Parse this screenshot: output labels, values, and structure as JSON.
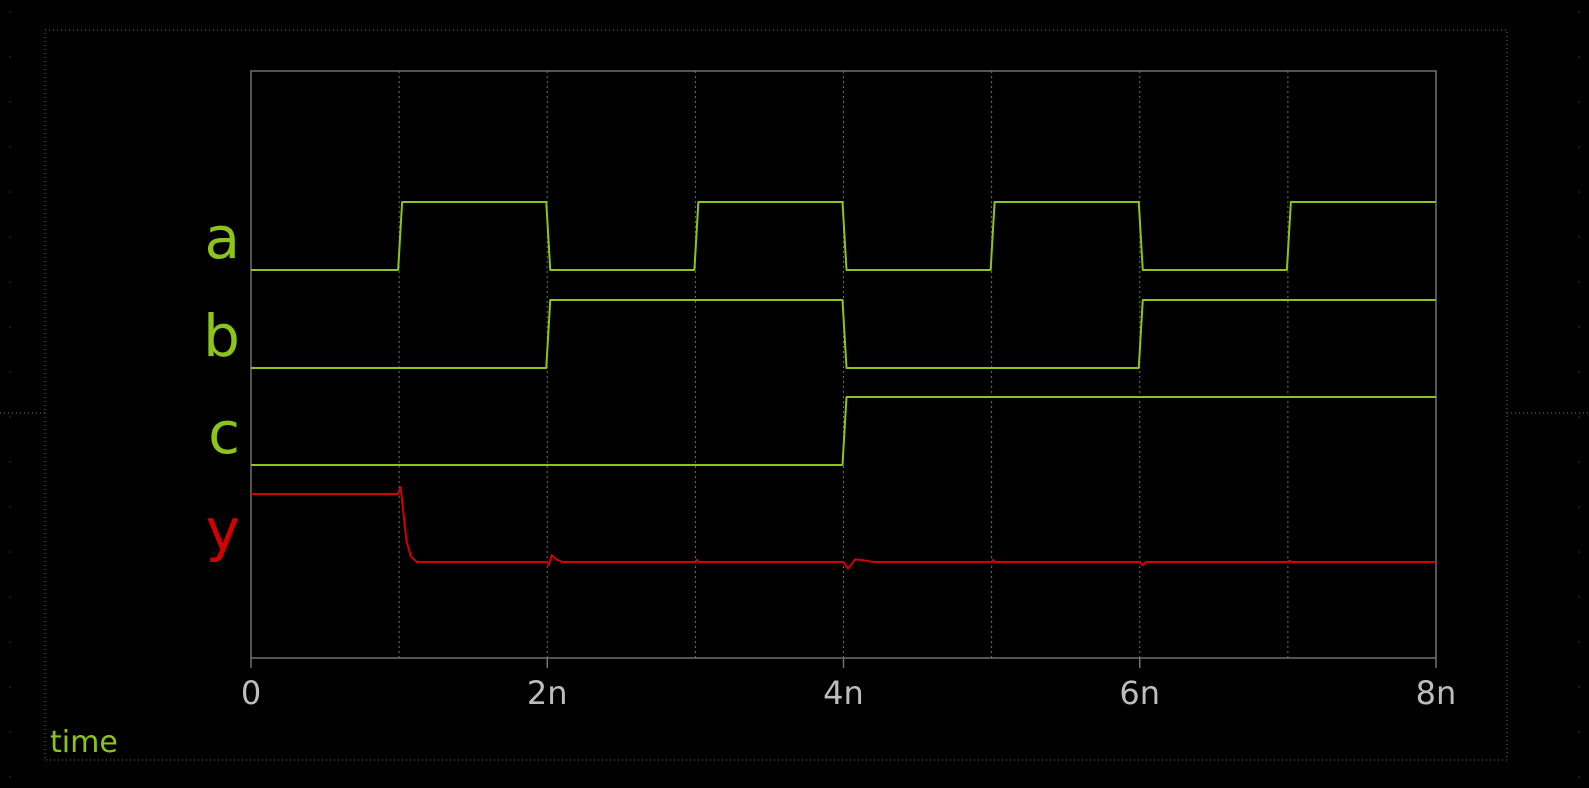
{
  "colors": {
    "background": "#000000",
    "digital_trace": "#8cc41b",
    "analog_trace": "#d40000",
    "grid": "#707070",
    "tick_label": "#bdbdbd",
    "frame_dots": "#6f6f6f"
  },
  "chart_data": {
    "type": "line",
    "title": "",
    "xlabel": "time",
    "ylabel": "",
    "xlim": [
      0,
      8
    ],
    "x_unit_suffix": "n",
    "x_ticks": [
      0,
      2,
      4,
      6,
      8
    ],
    "x_tick_labels": [
      "0",
      "2n",
      "4n",
      "6n",
      "8n"
    ],
    "x_gridlines": [
      1,
      2,
      3,
      4,
      5,
      6,
      7
    ],
    "grid": true,
    "legend": "none",
    "series": [
      {
        "name": "a",
        "kind": "digital",
        "color": "#8cc41b",
        "x": [
          0,
          1,
          2,
          3,
          4,
          5,
          6,
          7,
          8
        ],
        "y": [
          0,
          1,
          0,
          1,
          0,
          1,
          0,
          1,
          1
        ]
      },
      {
        "name": "b",
        "kind": "digital",
        "color": "#8cc41b",
        "x": [
          0,
          2,
          4,
          6,
          8
        ],
        "y": [
          0,
          1,
          0,
          1,
          1
        ]
      },
      {
        "name": "c",
        "kind": "digital",
        "color": "#8cc41b",
        "x": [
          0,
          4,
          8
        ],
        "y": [
          0,
          1,
          1
        ]
      },
      {
        "name": "y",
        "kind": "analog",
        "color": "#d40000",
        "x": [
          0,
          0.99,
          1.01,
          1.03,
          1.05,
          1.08,
          1.12,
          1.2,
          2.0,
          2.01,
          2.03,
          2.06,
          2.1,
          2.16,
          3.0,
          3.01,
          3.02,
          4.0,
          4.03,
          4.08,
          4.15,
          4.2,
          5.0,
          5.01,
          5.02,
          6.0,
          6.02,
          6.04,
          7.0,
          7.01,
          7.02,
          8.0
        ],
        "y": [
          1,
          1,
          1.1,
          0.7,
          0.3,
          0.08,
          0.0,
          0.0,
          0.0,
          -0.05,
          0.1,
          0.04,
          0.0,
          0.0,
          0.0,
          0.03,
          0.0,
          0.0,
          -0.1,
          0.04,
          0.02,
          0.0,
          0.0,
          0.03,
          0.0,
          0.0,
          -0.05,
          0.0,
          0.0,
          0.02,
          0.0,
          0.0
        ]
      }
    ]
  }
}
